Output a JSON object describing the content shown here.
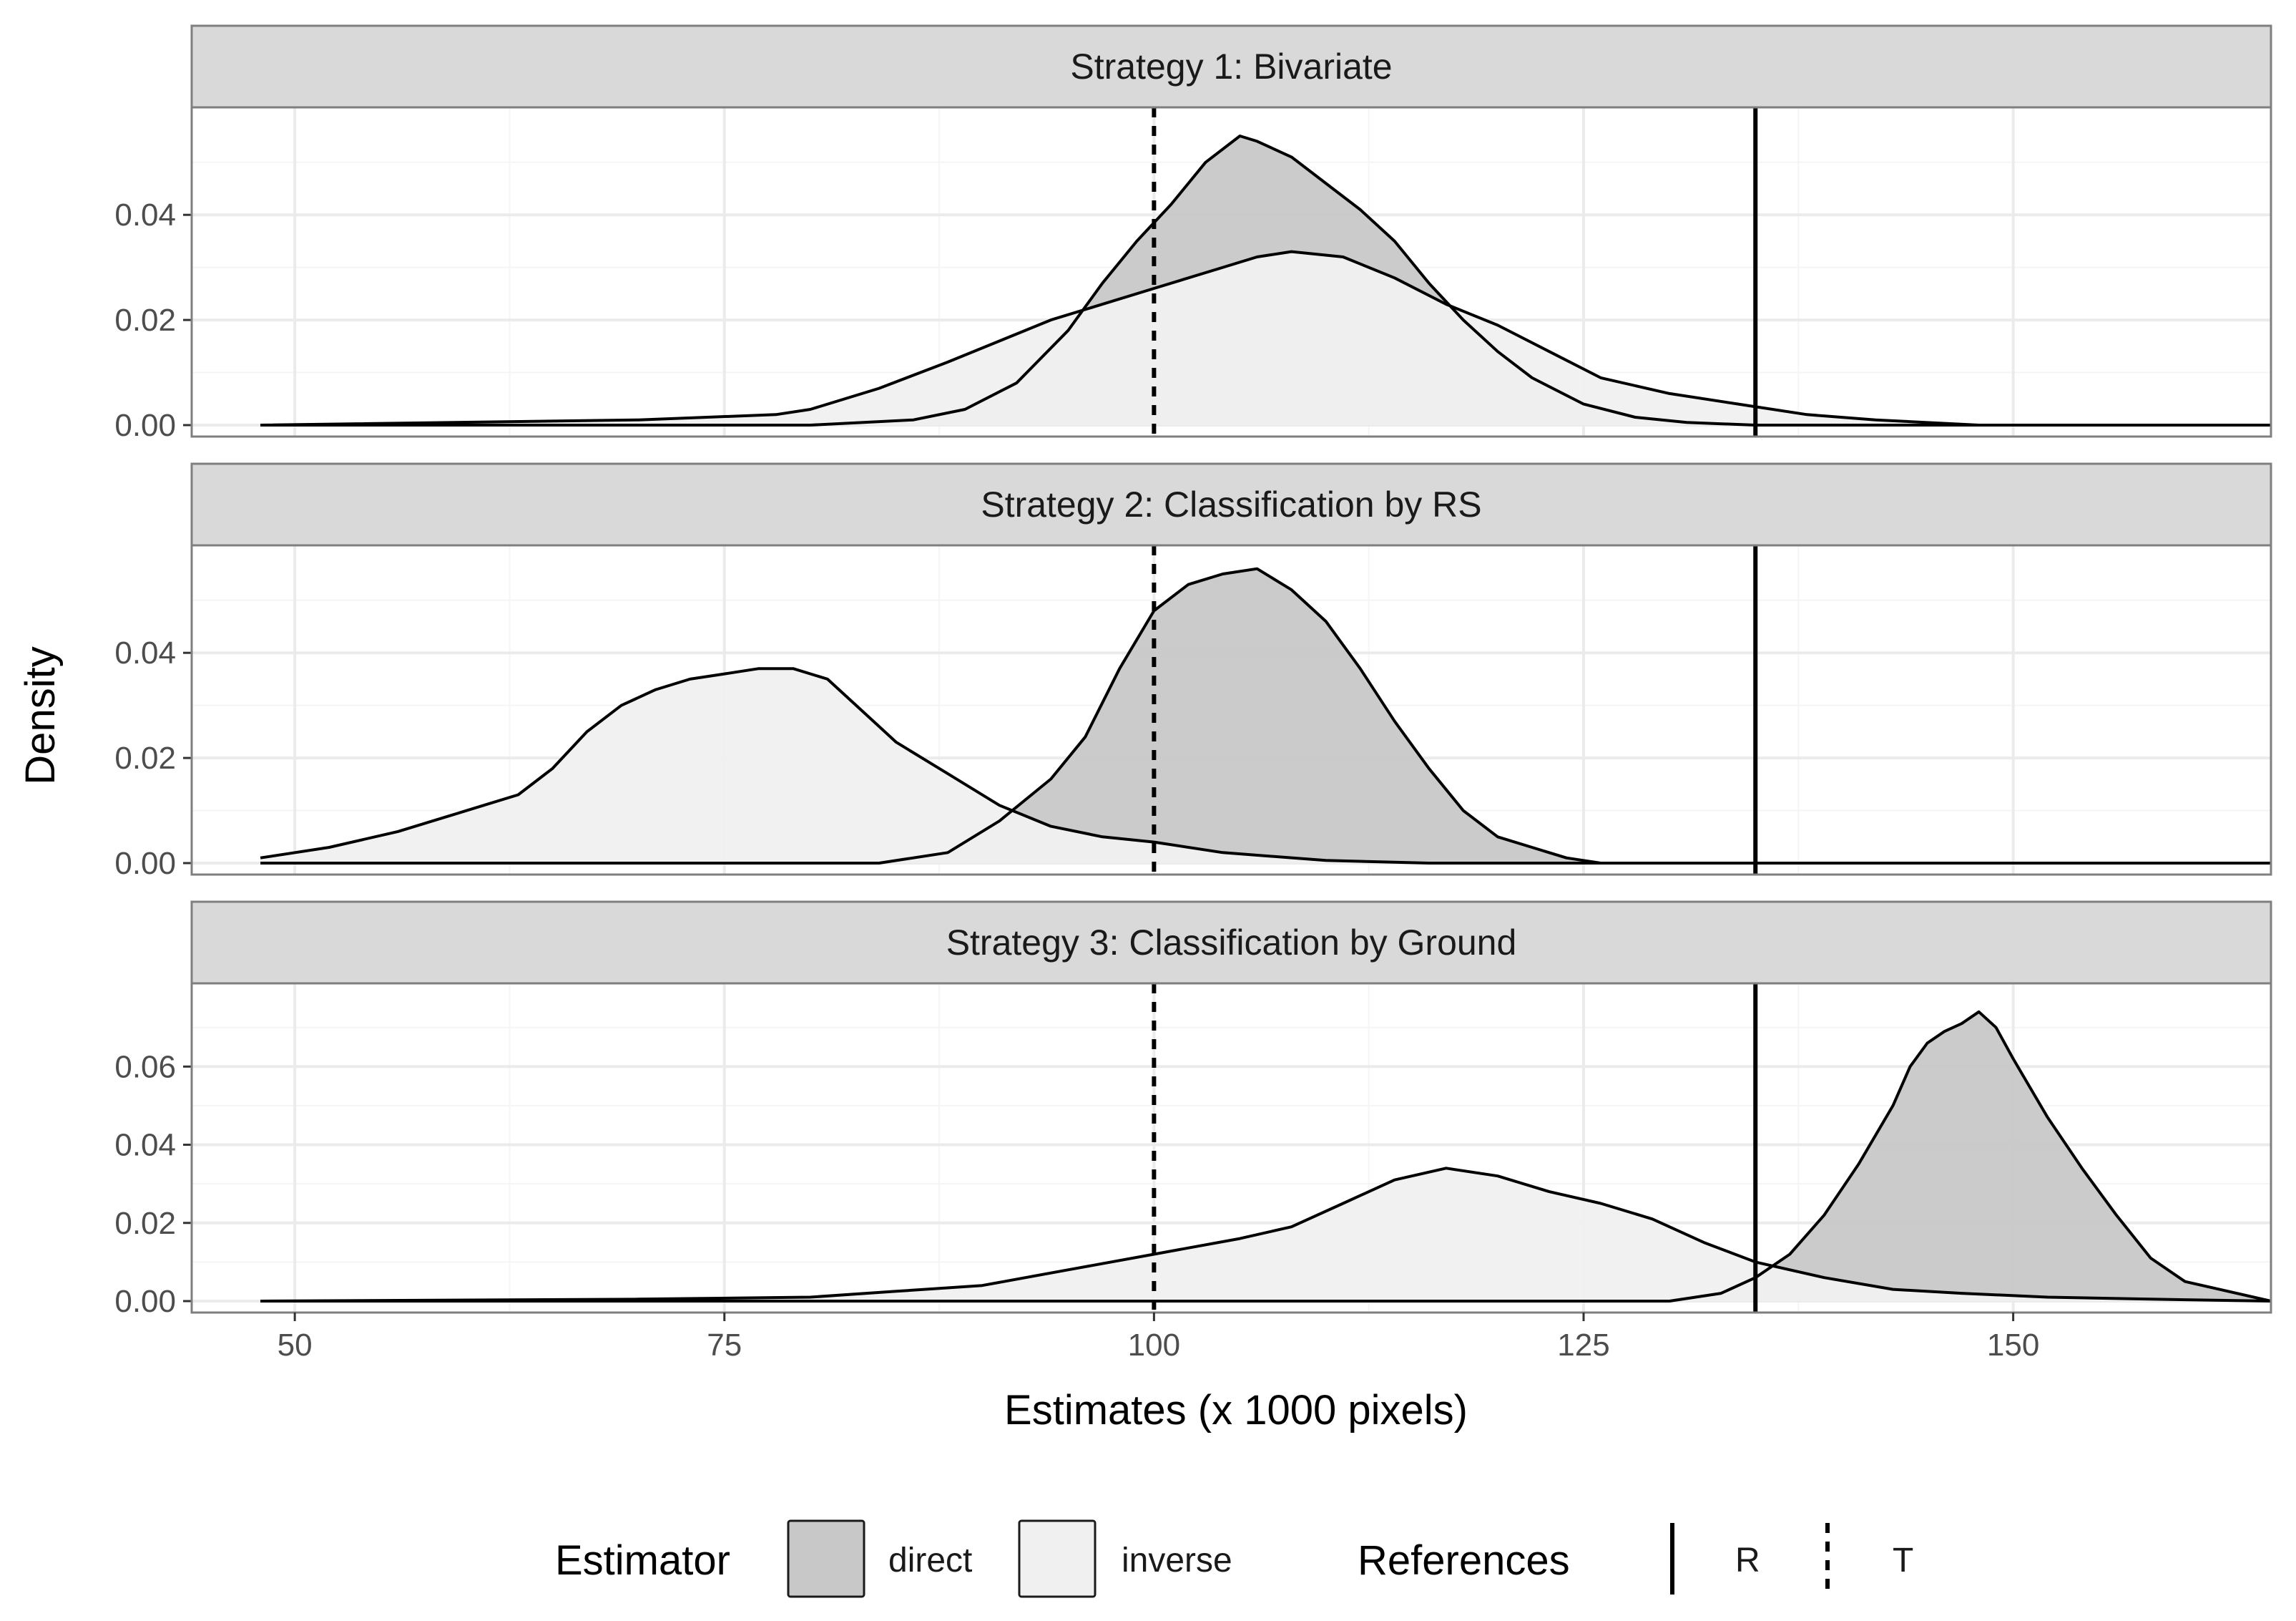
{
  "chart_data": {
    "type": "area",
    "facet_labels": [
      "Strategy 1: Bivariate",
      "Strategy 2: Classification by RS",
      "Strategy 3: Classification by Ground"
    ],
    "xlabel": "Estimates (x 1000 pixels)",
    "ylabel": "Density",
    "xlim": [
      44,
      165
    ],
    "x_ticks": [
      50,
      75,
      100,
      125,
      150
    ],
    "x_tick_labels": [
      "50",
      "75",
      "100",
      "125",
      "150"
    ],
    "references": {
      "R": 135,
      "T": 100
    },
    "panels": [
      {
        "title": "Strategy 1: Bivariate",
        "ylim": [
          0,
          0.058
        ],
        "y_ticks": [
          0,
          0.02,
          0.04
        ],
        "y_tick_labels": [
          "0.00",
          "0.02",
          "0.04"
        ],
        "series": [
          {
            "name": "direct",
            "x": [
              48,
              80,
              86,
              89,
              92,
              95,
              97,
              99,
              101,
              103,
              105,
              106,
              108,
              110,
              112,
              114,
              116,
              118,
              120,
              122,
              125,
              128,
              131,
              135,
              140,
              150,
              165
            ],
            "y": [
              0,
              0,
              0.001,
              0.003,
              0.008,
              0.018,
              0.027,
              0.035,
              0.042,
              0.05,
              0.055,
              0.054,
              0.051,
              0.046,
              0.041,
              0.035,
              0.027,
              0.02,
              0.014,
              0.009,
              0.004,
              0.0015,
              0.0005,
              0,
              0,
              0,
              0
            ]
          },
          {
            "name": "inverse",
            "x": [
              48,
              70,
              78,
              80,
              84,
              88,
              91,
              94,
              97,
              100,
              103,
              106,
              108,
              111,
              114,
              117,
              120,
              123,
              126,
              130,
              134,
              138,
              142,
              148,
              165
            ],
            "y": [
              0,
              0.001,
              0.002,
              0.003,
              0.007,
              0.012,
              0.016,
              0.02,
              0.023,
              0.026,
              0.029,
              0.032,
              0.033,
              0.032,
              0.028,
              0.023,
              0.019,
              0.014,
              0.009,
              0.006,
              0.004,
              0.002,
              0.001,
              0,
              0
            ]
          }
        ]
      },
      {
        "title": "Strategy 2: Classification by RS",
        "ylim": [
          0,
          0.058
        ],
        "y_ticks": [
          0,
          0.02,
          0.04
        ],
        "y_tick_labels": [
          "0.00",
          "0.02",
          "0.04"
        ],
        "series": [
          {
            "name": "direct",
            "x": [
              48,
              84,
              88,
              91,
              94,
              96,
              98,
              100,
              102,
              104,
              106,
              108,
              110,
              112,
              114,
              116,
              118,
              120,
              122,
              124,
              126,
              128,
              165
            ],
            "y": [
              0,
              0,
              0.002,
              0.008,
              0.016,
              0.024,
              0.037,
              0.048,
              0.053,
              0.055,
              0.056,
              0.052,
              0.046,
              0.037,
              0.027,
              0.018,
              0.01,
              0.005,
              0.003,
              0.001,
              0,
              0,
              0
            ]
          },
          {
            "name": "inverse",
            "x": [
              48,
              52,
              56,
              60,
              63,
              65,
              67,
              69,
              71,
              73,
              75,
              77,
              79,
              81,
              83,
              85,
              88,
              91,
              94,
              97,
              100,
              104,
              110,
              116,
              122,
              165
            ],
            "y": [
              0.001,
              0.003,
              0.006,
              0.01,
              0.013,
              0.018,
              0.025,
              0.03,
              0.033,
              0.035,
              0.036,
              0.037,
              0.037,
              0.035,
              0.029,
              0.023,
              0.017,
              0.011,
              0.007,
              0.005,
              0.004,
              0.002,
              0.0005,
              0,
              0,
              0
            ]
          }
        ]
      },
      {
        "title": "Strategy 3: Classification by Ground",
        "ylim": [
          0,
          0.078
        ],
        "y_ticks": [
          0,
          0.02,
          0.04,
          0.06
        ],
        "y_tick_labels": [
          "0.00",
          "0.02",
          "0.04",
          "0.06"
        ],
        "series": [
          {
            "name": "direct",
            "x": [
              48,
              130,
              133,
              135,
              137,
              139,
              141,
              143,
              144,
              145,
              146,
              147,
              148,
              149,
              150,
              152,
              154,
              156,
              158,
              160,
              162,
              165
            ],
            "y": [
              0,
              0,
              0.002,
              0.006,
              0.012,
              0.022,
              0.035,
              0.05,
              0.06,
              0.066,
              0.069,
              0.071,
              0.074,
              0.07,
              0.062,
              0.047,
              0.034,
              0.022,
              0.011,
              0.005,
              0.003,
              0
            ]
          },
          {
            "name": "inverse",
            "x": [
              48,
              70,
              80,
              85,
              90,
              95,
              100,
              105,
              108,
              111,
              114,
              117,
              120,
              123,
              126,
              129,
              132,
              135,
              139,
              143,
              147,
              152,
              158,
              165
            ],
            "y": [
              0,
              0.0005,
              0.001,
              0.0025,
              0.004,
              0.008,
              0.012,
              0.016,
              0.019,
              0.025,
              0.031,
              0.034,
              0.032,
              0.028,
              0.025,
              0.021,
              0.015,
              0.01,
              0.006,
              0.003,
              0.002,
              0.001,
              0.0005,
              0
            ]
          }
        ]
      }
    ],
    "legend": {
      "estimator_title": "Estimator",
      "estimator_items": [
        {
          "label": "direct",
          "fill": "#c8c8c8"
        },
        {
          "label": "inverse",
          "fill": "#f0f0f0"
        }
      ],
      "references_title": "References",
      "references_items": [
        {
          "label": "R",
          "linetype": "solid"
        },
        {
          "label": "T",
          "linetype": "dashed"
        }
      ]
    }
  },
  "colors": {
    "direct_fill": "#c8c8c8",
    "inverse_fill": "#f0f0f0",
    "strip_fill": "#d9d9d9",
    "grid_major": "#ebebeb",
    "grid_minor": "#f5f5f5",
    "panel_border": "#7f7f7f"
  }
}
